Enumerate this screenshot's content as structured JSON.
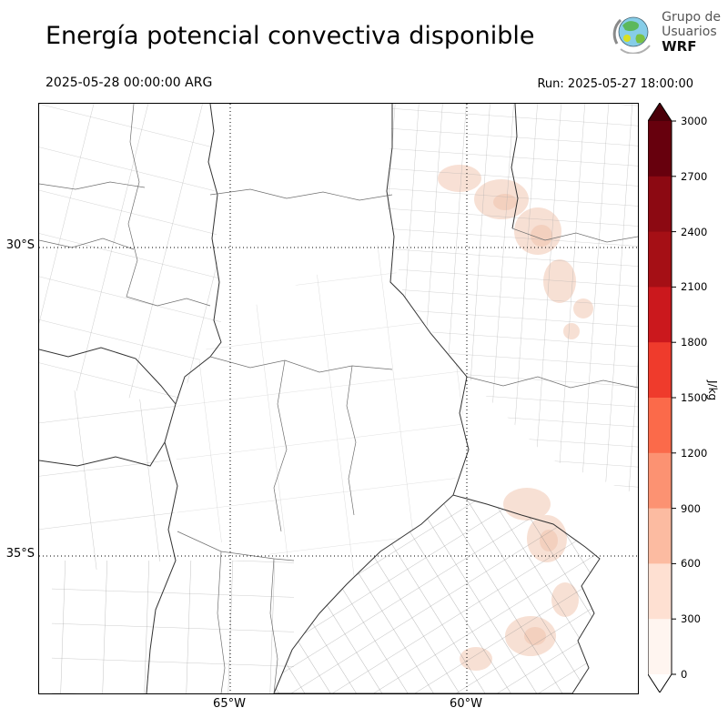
{
  "header": {
    "title": "Energía potencial convectiva disponible",
    "logo": {
      "line1": "Grupo de",
      "line2": "Usuarios",
      "line3": "WRF"
    }
  },
  "subheader": {
    "valid_time": "2025-05-28 00:00:00 ARG",
    "run": "Run: 2025-05-27 18:00:00"
  },
  "map": {
    "lat_ticks": [
      "30°S",
      "35°S"
    ],
    "lon_ticks": [
      "65°W",
      "60°W"
    ],
    "shade_light": "#f7ddd0",
    "shade_core": "#f2cbb8"
  },
  "colorbar": {
    "unit": "J/kg",
    "ticks_top_to_bottom": [
      "3000",
      "2700",
      "2400",
      "2100",
      "1800",
      "1500",
      "1200",
      "900",
      "600",
      "300",
      "0"
    ],
    "segments_top_to_bottom": [
      "#67000d",
      "#8c0912",
      "#a50f15",
      "#cb181d",
      "#ef3b2c",
      "#fb6a4a",
      "#fc9272",
      "#fcbba1",
      "#fee0d2",
      "#fff5f0"
    ],
    "over_color": "#4a0009",
    "under_color": "#ffffff"
  },
  "chart_data": {
    "type": "heatmap",
    "title": "Energía potencial convectiva disponible",
    "units": "J/kg",
    "valid_time": "2025-05-28 00:00:00 ARG",
    "run": "2025-05-27 18:00:00",
    "colorbar_range": [
      0,
      3000
    ],
    "colorbar_ticks": [
      0,
      300,
      600,
      900,
      1200,
      1500,
      1800,
      2100,
      2400,
      2700,
      3000
    ],
    "lat_gridlines_deg_s": [
      30,
      35
    ],
    "lon_gridlines_deg_w": [
      65,
      60
    ],
    "notes": "Mostly near-zero values across the domain; faint shading below ~300 J/kg over the northeast and southeast sectors of the map."
  }
}
